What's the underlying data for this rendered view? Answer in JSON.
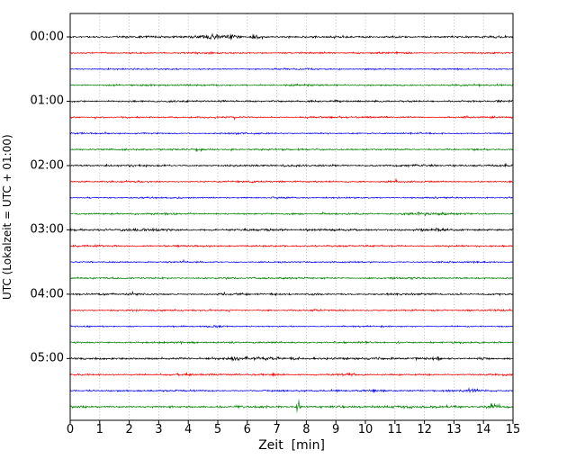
{
  "chart_data": {
    "type": "line",
    "variant": "helicorder-seismogram",
    "title": "",
    "xlabel": "Zeit  [min]",
    "ylabel": "UTC (Lokalzeit = UTC + 01:00)",
    "xlim": [
      0,
      15
    ],
    "xtick_labels": [
      "0",
      "1",
      "2",
      "3",
      "4",
      "5",
      "6",
      "7",
      "8",
      "9",
      "10",
      "11",
      "12",
      "13",
      "14",
      "15"
    ],
    "ytick_labels": [
      "00:00",
      "01:00",
      "02:00",
      "03:00",
      "04:00",
      "05:00"
    ],
    "rows": 24,
    "minutes_per_row": 15,
    "traces_per_hour": 4,
    "grid": {
      "vertical": true,
      "style": "dotted",
      "color": "#aaaaaa"
    },
    "colors_cycle": [
      "#000000",
      "#ff0000",
      "#0000ff",
      "#008000"
    ],
    "traces": [
      {
        "color": "#000000",
        "amp": 1.4,
        "events": [
          {
            "x": 4.8,
            "w": 0.55,
            "a": 2.2
          },
          {
            "x": 5.45,
            "w": 0.2,
            "a": 2.4
          },
          {
            "x": 6.3,
            "w": 0.16,
            "a": 2.4
          }
        ]
      },
      {
        "color": "#ff0000",
        "amp": 1.2,
        "events": []
      },
      {
        "color": "#0000ff",
        "amp": 1.0,
        "events": []
      },
      {
        "color": "#008000",
        "amp": 1.2,
        "events": []
      },
      {
        "color": "#000000",
        "amp": 1.3,
        "events": [
          {
            "x": 7.0,
            "w": 0.3,
            "a": 0.6
          }
        ]
      },
      {
        "color": "#ff0000",
        "amp": 1.2,
        "events": []
      },
      {
        "color": "#0000ff",
        "amp": 1.0,
        "events": [
          {
            "x": 5.8,
            "w": 0.25,
            "a": 0.7
          }
        ]
      },
      {
        "color": "#008000",
        "amp": 1.2,
        "events": [
          {
            "x": 4.3,
            "w": 0.15,
            "a": 0.7
          },
          {
            "x": 6.5,
            "w": 0.2,
            "a": 0.6
          }
        ]
      },
      {
        "color": "#000000",
        "amp": 1.4,
        "events": []
      },
      {
        "color": "#ff0000",
        "amp": 1.2,
        "events": []
      },
      {
        "color": "#0000ff",
        "amp": 1.0,
        "events": [
          {
            "x": 7.1,
            "w": 0.22,
            "a": 1.1
          }
        ]
      },
      {
        "color": "#008000",
        "amp": 1.2,
        "events": [
          {
            "x": 11.7,
            "w": 0.38,
            "a": 2.2
          },
          {
            "x": 12.6,
            "w": 0.14,
            "a": 1.1
          }
        ]
      },
      {
        "color": "#000000",
        "amp": 1.5,
        "events": [
          {
            "x": 2.6,
            "w": 0.7,
            "a": 0.5
          }
        ]
      },
      {
        "color": "#ff0000",
        "amp": 1.2,
        "events": []
      },
      {
        "color": "#0000ff",
        "amp": 1.0,
        "events": [
          {
            "x": 12.8,
            "w": 0.28,
            "a": 0.9
          }
        ]
      },
      {
        "color": "#008000",
        "amp": 1.2,
        "events": []
      },
      {
        "color": "#000000",
        "amp": 1.4,
        "events": [
          {
            "x": 5.2,
            "w": 0.2,
            "a": 0.9
          }
        ]
      },
      {
        "color": "#ff0000",
        "amp": 1.2,
        "events": []
      },
      {
        "color": "#0000ff",
        "amp": 1.0,
        "events": [
          {
            "x": 5.0,
            "w": 0.22,
            "a": 1.3
          }
        ]
      },
      {
        "color": "#008000",
        "amp": 1.2,
        "events": [
          {
            "x": 5.5,
            "w": 0.15,
            "a": 0.6
          },
          {
            "x": 9.9,
            "w": 0.18,
            "a": 0.8
          },
          {
            "x": 11.2,
            "w": 0.18,
            "a": 0.7
          }
        ]
      },
      {
        "color": "#000000",
        "amp": 1.6,
        "events": [
          {
            "x": 5.7,
            "w": 0.35,
            "a": 1.1
          },
          {
            "x": 6.8,
            "w": 0.4,
            "a": 1.1
          },
          {
            "x": 7.7,
            "w": 0.3,
            "a": 0.9
          },
          {
            "x": 10.5,
            "w": 0.14,
            "a": 1.3
          },
          {
            "x": 12.5,
            "w": 0.18,
            "a": 1.3
          },
          {
            "x": 13.9,
            "w": 0.14,
            "a": 1.2
          }
        ]
      },
      {
        "color": "#ff0000",
        "amp": 1.3,
        "events": [
          {
            "x": 3.9,
            "w": 0.22,
            "a": 1.3
          },
          {
            "x": 7.0,
            "w": 0.3,
            "a": 1.1
          },
          {
            "x": 9.4,
            "w": 0.2,
            "a": 1.0
          }
        ]
      },
      {
        "color": "#0000ff",
        "amp": 1.2,
        "events": [
          {
            "x": 10.4,
            "w": 0.28,
            "a": 1.3
          },
          {
            "x": 13.5,
            "w": 0.28,
            "a": 1.5
          }
        ]
      },
      {
        "color": "#008000",
        "amp": 1.5,
        "events": [
          {
            "x": 7.72,
            "w": 0.06,
            "a": 11.5
          },
          {
            "x": 10.9,
            "w": 0.9,
            "a": 0.7
          },
          {
            "x": 13.0,
            "w": 0.3,
            "a": 0.9
          },
          {
            "x": 14.35,
            "w": 0.18,
            "a": 4.2
          }
        ]
      }
    ]
  }
}
